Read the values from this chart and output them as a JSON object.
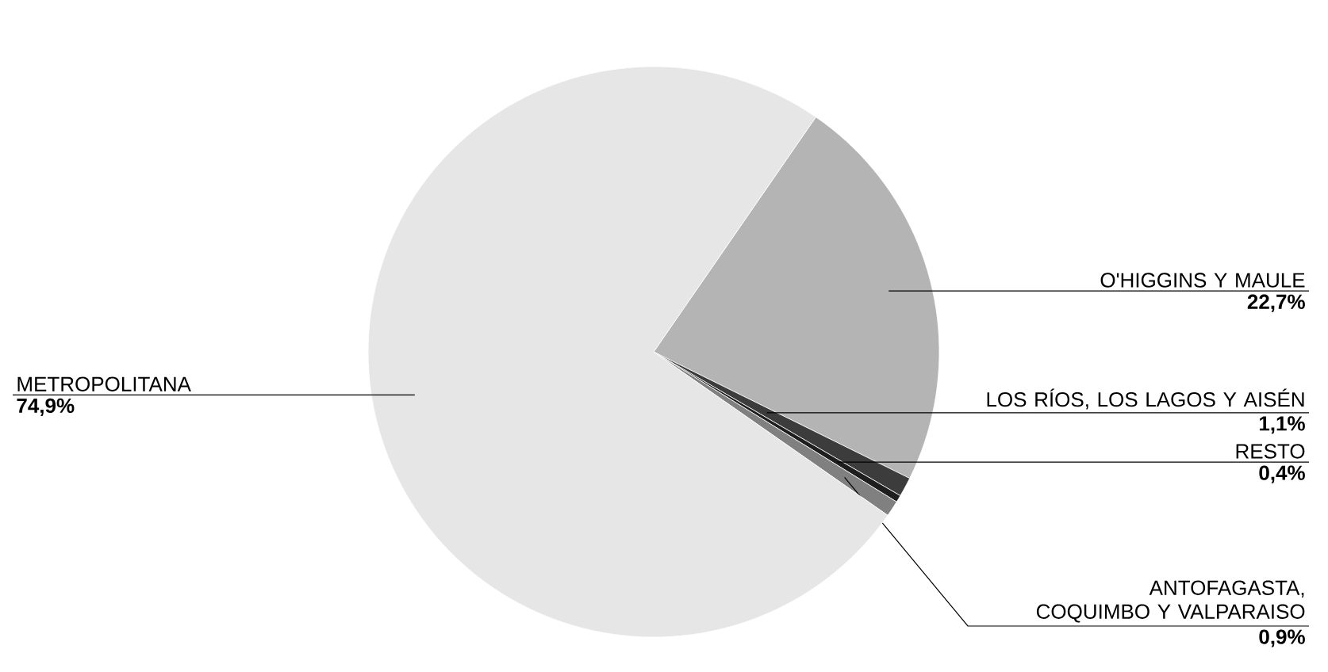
{
  "chart_data": {
    "type": "pie",
    "categories": [
      "O'HIGGINS Y MAULE",
      "LOS RÍOS, LOS LAGOS Y AISÉN",
      "RESTO",
      "ANTOFAGASTA, COQUIMBO Y VALPARAISO",
      "METROPOLITANA"
    ],
    "values": [
      22.7,
      1.1,
      0.4,
      0.9,
      74.9
    ],
    "value_labels": [
      "22,7%",
      "1,1%",
      "0,4%",
      "0,9%",
      "74,9%"
    ],
    "colors": [
      "#b4b4b4",
      "#3c3c3c",
      "#1e1e1e",
      "#808080",
      "#e6e6e6"
    ]
  }
}
